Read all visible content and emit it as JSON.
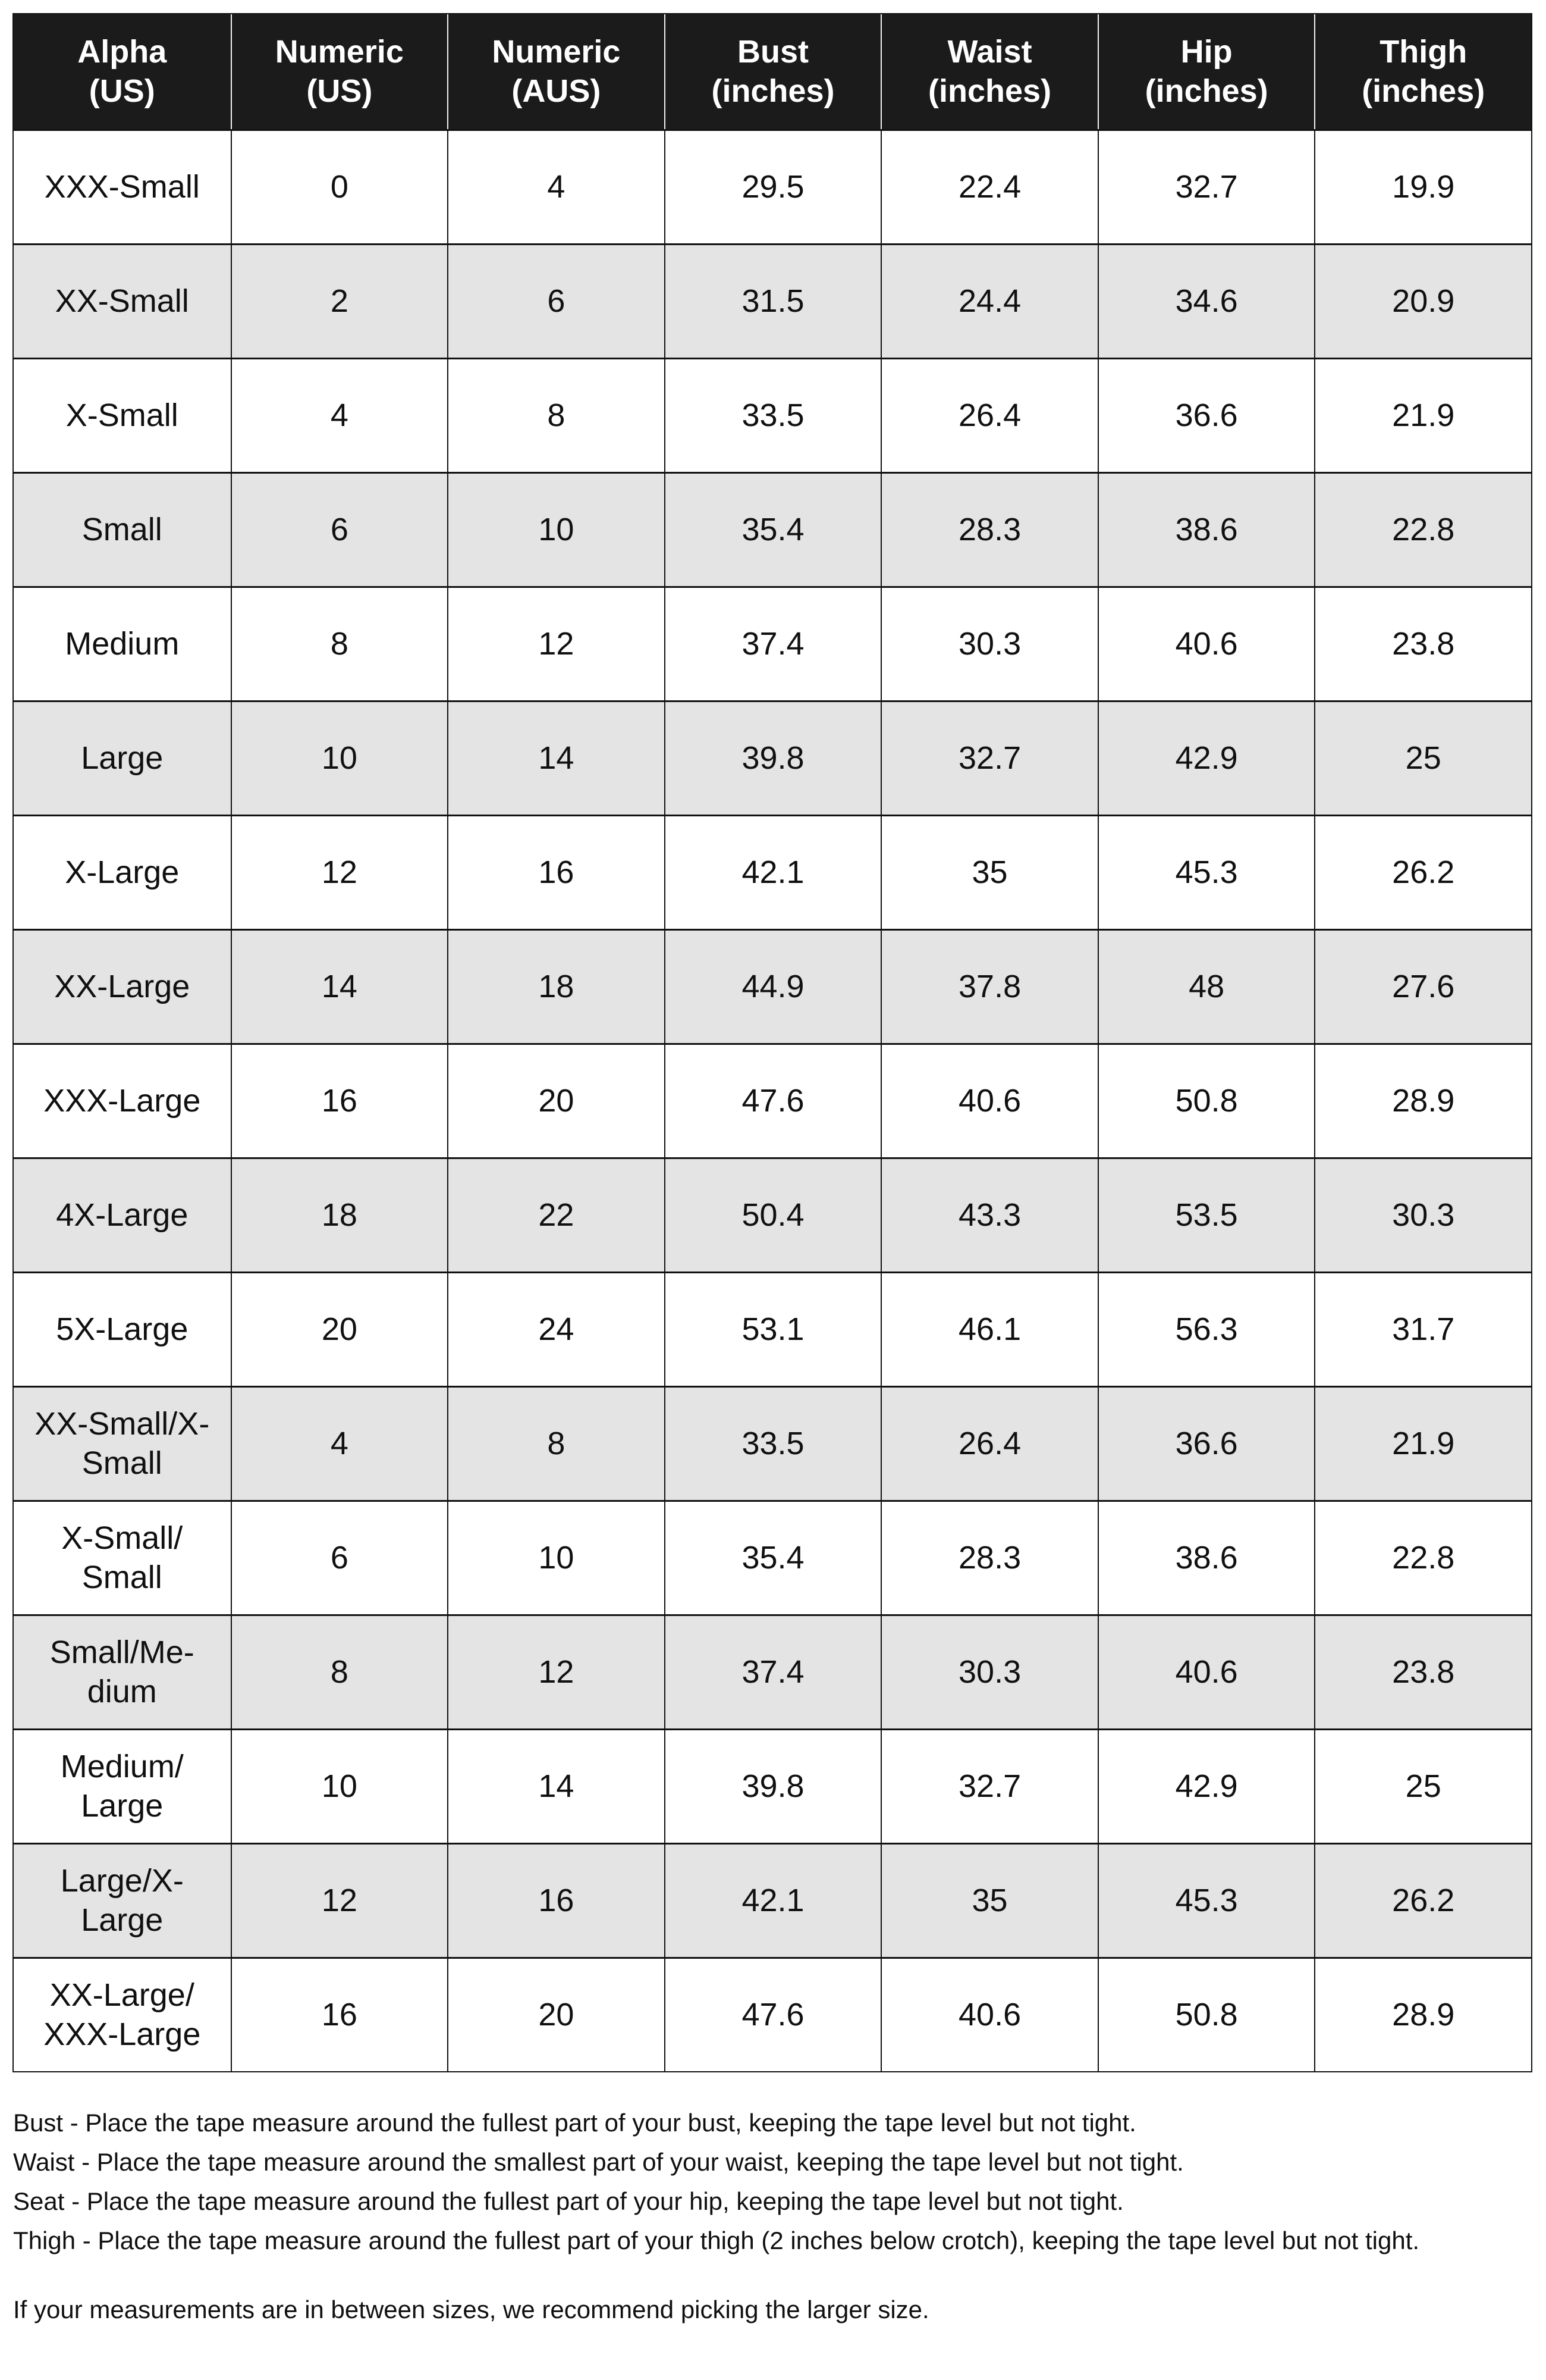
{
  "colors": {
    "header_bg": "#1b1b1b",
    "header_text": "#ffffff",
    "row_bg": "#ffffff",
    "row_alt_bg": "#e4e4e4",
    "border": "#111111",
    "text": "#101010"
  },
  "table": {
    "columns": [
      {
        "key": "alpha",
        "label": "Alpha\n(US)"
      },
      {
        "key": "numeric_us",
        "label": "Numeric\n(US)"
      },
      {
        "key": "numeric_aus",
        "label": "Numeric\n(AUS)"
      },
      {
        "key": "bust",
        "label": "Bust\n(inches)"
      },
      {
        "key": "waist",
        "label": "Waist\n(inches)"
      },
      {
        "key": "hip",
        "label": "Hip\n(inches)"
      },
      {
        "key": "thigh",
        "label": "Thigh\n(inches)"
      }
    ],
    "rows": [
      {
        "alpha": "XXX-Small",
        "numeric_us": "0",
        "numeric_aus": "4",
        "bust": "29.5",
        "waist": "22.4",
        "hip": "32.7",
        "thigh": "19.9"
      },
      {
        "alpha": "XX-Small",
        "numeric_us": "2",
        "numeric_aus": "6",
        "bust": "31.5",
        "waist": "24.4",
        "hip": "34.6",
        "thigh": "20.9"
      },
      {
        "alpha": "X-Small",
        "numeric_us": "4",
        "numeric_aus": "8",
        "bust": "33.5",
        "waist": "26.4",
        "hip": "36.6",
        "thigh": "21.9"
      },
      {
        "alpha": "Small",
        "numeric_us": "6",
        "numeric_aus": "10",
        "bust": "35.4",
        "waist": "28.3",
        "hip": "38.6",
        "thigh": "22.8"
      },
      {
        "alpha": "Medium",
        "numeric_us": "8",
        "numeric_aus": "12",
        "bust": "37.4",
        "waist": "30.3",
        "hip": "40.6",
        "thigh": "23.8"
      },
      {
        "alpha": "Large",
        "numeric_us": "10",
        "numeric_aus": "14",
        "bust": "39.8",
        "waist": "32.7",
        "hip": "42.9",
        "thigh": "25"
      },
      {
        "alpha": "X-Large",
        "numeric_us": "12",
        "numeric_aus": "16",
        "bust": "42.1",
        "waist": "35",
        "hip": "45.3",
        "thigh": "26.2"
      },
      {
        "alpha": "XX-Large",
        "numeric_us": "14",
        "numeric_aus": "18",
        "bust": "44.9",
        "waist": "37.8",
        "hip": "48",
        "thigh": "27.6"
      },
      {
        "alpha": "XXX-Large",
        "numeric_us": "16",
        "numeric_aus": "20",
        "bust": "47.6",
        "waist": "40.6",
        "hip": "50.8",
        "thigh": "28.9"
      },
      {
        "alpha": "4X-Large",
        "numeric_us": "18",
        "numeric_aus": "22",
        "bust": "50.4",
        "waist": "43.3",
        "hip": "53.5",
        "thigh": "30.3"
      },
      {
        "alpha": "5X-Large",
        "numeric_us": "20",
        "numeric_aus": "24",
        "bust": "53.1",
        "waist": "46.1",
        "hip": "56.3",
        "thigh": "31.7"
      },
      {
        "alpha": "XX-Small/X-\nSmall",
        "numeric_us": "4",
        "numeric_aus": "8",
        "bust": "33.5",
        "waist": "26.4",
        "hip": "36.6",
        "thigh": "21.9"
      },
      {
        "alpha": "X-Small/\nSmall",
        "numeric_us": "6",
        "numeric_aus": "10",
        "bust": "35.4",
        "waist": "28.3",
        "hip": "38.6",
        "thigh": "22.8"
      },
      {
        "alpha": "Small/Me-\ndium",
        "numeric_us": "8",
        "numeric_aus": "12",
        "bust": "37.4",
        "waist": "30.3",
        "hip": "40.6",
        "thigh": "23.8"
      },
      {
        "alpha": "Medium/\nLarge",
        "numeric_us": "10",
        "numeric_aus": "14",
        "bust": "39.8",
        "waist": "32.7",
        "hip": "42.9",
        "thigh": "25"
      },
      {
        "alpha": "Large/X-\nLarge",
        "numeric_us": "12",
        "numeric_aus": "16",
        "bust": "42.1",
        "waist": "35",
        "hip": "45.3",
        "thigh": "26.2"
      },
      {
        "alpha": "XX-Large/\nXXX-Large",
        "numeric_us": "16",
        "numeric_aus": "20",
        "bust": "47.6",
        "waist": "40.6",
        "hip": "50.8",
        "thigh": "28.9"
      }
    ]
  },
  "notes": {
    "measure_instructions": [
      "Bust - Place the tape measure around the fullest part of your bust, keeping the tape level but not tight.",
      "Waist - Place the tape measure around the smallest part of your waist, keeping the tape level but not tight.",
      "Seat - Place the tape measure around the fullest part of your hip, keeping the tape level but not tight.",
      "Thigh - Place the tape measure around the fullest part of your thigh (2 inches below crotch), keeping the tape level but not tight."
    ],
    "sizing_tip": "If your measurements are in between sizes, we recommend picking the larger size."
  }
}
